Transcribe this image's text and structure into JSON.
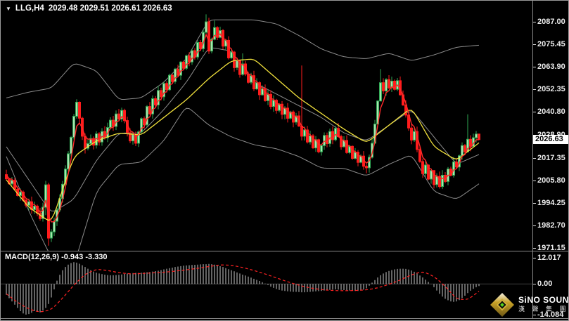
{
  "header": {
    "dropdown_icon": "▼",
    "symbol": "LLG,H4",
    "ohlc_text": "2029.48 2029.51 2026.61 2026.63"
  },
  "price_axis": {
    "ticks": [
      "2087.00",
      "2075.45",
      "2063.90",
      "2052.35",
      "2040.80",
      "2028.90",
      "2017.35",
      "2005.80",
      "1994.25",
      "1982.70",
      "1971.15"
    ],
    "tick_values": [
      2087.0,
      2075.45,
      2063.9,
      2052.35,
      2040.8,
      2028.9,
      2017.35,
      2005.8,
      1994.25,
      1982.7,
      1971.15
    ],
    "current_label": "2026.63",
    "current_value": 2026.63
  },
  "macd_axis": {
    "ticks": [
      "12.017",
      "0.00",
      "-14.084"
    ],
    "tick_values": [
      12.017,
      0,
      -14.084
    ]
  },
  "macd_panel": {
    "label": "MACD(12,26,9) -0.943 -3.330"
  },
  "watermark": {
    "brand": "SiNO SOUND",
    "brand_cn": "漢 聲 集 團"
  },
  "colors": {
    "background": "#000000",
    "up_fill": "#A9E4AF",
    "up_stroke": "#2FA854",
    "down": "#FF1C1C",
    "band": "#8C8C8C",
    "ma_yellow": "#F0E03C",
    "ma_red": "#FF2A2A",
    "macd_bar": "#C9C9C9",
    "macd_signal": "#FF2222",
    "axis_text": "#ECECEC",
    "zero_line": "#3c3c3c"
  },
  "chart_data": {
    "type": "candlestick",
    "title": "LLG,H4",
    "symbol": "LLG",
    "timeframe": "H4",
    "last_ohlc": {
      "open": 2029.48,
      "high": 2029.51,
      "low": 2026.61,
      "close": 2026.63
    },
    "y_range": {
      "top": 2087.0,
      "bottom": 1971.15
    },
    "grid": "off",
    "closes": [
      2006.5,
      2004.0,
      2005.8,
      2001.2,
      1998.0,
      1999.8,
      1995.6,
      1993.0,
      1994.8,
      1990.8,
      1992.6,
      1989.0,
      1986.2,
      1992.0,
      2003.5,
      1976.2,
      1979.4,
      1984.8,
      1990.6,
      1996.4,
      2003.8,
      2011.6,
      2019.4,
      2027.8,
      2038.6,
      2045.8,
      2037.6,
      2028.4,
      2022.2,
      2024.6,
      2027.2,
      2023.8,
      2029.6,
      2025.4,
      2030.8,
      2027.6,
      2032.8,
      2036.6,
      2033.4,
      2039.8,
      2037.2,
      2041.6,
      2036.4,
      2030.2,
      2026.0,
      2029.2,
      2024.8,
      2030.6,
      2037.4,
      2034.2,
      2043.6,
      2039.8,
      2047.6,
      2044.4,
      2051.8,
      2048.6,
      2055.4,
      2052.2,
      2059.6,
      2056.4,
      2062.8,
      2059.6,
      2066.4,
      2063.2,
      2069.6,
      2066.4,
      2072.2,
      2069.0,
      2076.4,
      2073.2,
      2081.6,
      2087.0,
      2072.0,
      2078.0,
      2084.0,
      2079.0,
      2082.5,
      2074.5,
      2077.5,
      2068.5,
      2071.5,
      2063.5,
      2067.0,
      2060.0,
      2065.4,
      2060.2,
      2056.0,
      2059.4,
      2052.6,
      2055.8,
      2049.6,
      2052.8,
      2046.6,
      2049.8,
      2043.6,
      2046.8,
      2041.6,
      2044.8,
      2039.6,
      2042.8,
      2037.6,
      2040.8,
      2035.6,
      2038.8,
      2033.6,
      2028.4,
      2031.6,
      2025.4,
      2028.6,
      2022.4,
      2026.6,
      2020.4,
      2023.6,
      2028.8,
      2024.6,
      2030.8,
      2026.6,
      2032.4,
      2028.2,
      2023.0,
      2026.2,
      2020.0,
      2023.2,
      2017.0,
      2020.2,
      2015.0,
      2018.2,
      2013.0,
      2012.2,
      2017.6,
      2024.8,
      2034.6,
      2046.4,
      2055.8,
      2051.6,
      2057.4,
      2053.2,
      2056.6,
      2052.4,
      2056.8,
      2049.6,
      2044.4,
      2039.2,
      2032.6,
      2026.4,
      2030.8,
      2021.6,
      2015.4,
      2009.2,
      2013.6,
      2006.4,
      2010.8,
      2003.6,
      2007.8,
      2002.6,
      2008.4,
      2005.2,
      2011.6,
      2008.4,
      2015.2,
      2012.6,
      2018.4,
      2023.6,
      2020.4,
      2026.8,
      2023.2,
      2027.6,
      2029.5,
      2026.63
    ],
    "wick_overrides": {
      "14": [
        2005.5,
        1988.0
      ],
      "15": [
        2004.5,
        1972.3
      ],
      "71": [
        2090.8,
        2080.5
      ],
      "72": [
        2089.0,
        2070.5
      ],
      "74": [
        2087.6,
        2077.5
      ],
      "84": [
        2070.8,
        2059.4
      ],
      "105": [
        2064.6,
        2026.2
      ],
      "128": [
        2014.0,
        2009.4
      ],
      "133": [
        2062.8,
        2046.2
      ],
      "152": [
        2011.0,
        2001.6
      ],
      "164": [
        2039.6,
        2020.2
      ],
      "168": [
        2029.51,
        2026.61
      ]
    },
    "indicators": {
      "anchor_step": 8,
      "bollinger_upper": [
        2048,
        2051,
        2053,
        2066,
        2062,
        2047,
        2048,
        2056,
        2068,
        2088,
        2088,
        2088,
        2086,
        2080,
        2073,
        2069,
        2068,
        2071,
        2067,
        2070,
        2074,
        2075
      ],
      "bollinger_mid": [
        2023,
        2006,
        1989,
        1996,
        2016,
        2030,
        2030,
        2042,
        2056,
        2074,
        2072,
        2056,
        2050,
        2044,
        2038,
        2030,
        2026,
        2034,
        2042,
        2028,
        2014,
        2019
      ],
      "bollinger_lower": [
        2018,
        1990,
        1966,
        1962,
        2000,
        2014,
        2015,
        2026,
        2044,
        2034,
        2028,
        2024,
        2022,
        2018,
        2012,
        2012,
        2008,
        2014,
        2019,
        2000,
        1996,
        2004
      ],
      "ma_yellow": [
        2006,
        1992,
        1984,
        2018,
        2026,
        2030,
        2029,
        2038,
        2047,
        2058,
        2067,
        2068,
        2058,
        2048,
        2040,
        2032,
        2025,
        2034,
        2043,
        2023,
        2016,
        2025
      ],
      "ma_red_period": 4
    },
    "macd": {
      "label": "MACD(12,26,9)",
      "last_macd": -0.943,
      "last_signal": -3.33,
      "axis": [
        12.017,
        0,
        -14.084
      ],
      "histogram": [
        -5.0,
        -6.5,
        -8.0,
        -9.5,
        -11.0,
        -12.5,
        -13.5,
        -14.08,
        -13.8,
        -13.2,
        -12.5,
        -12.8,
        -13.0,
        -12.2,
        -11.0,
        -9.2,
        -6.2,
        -2.5,
        1.5,
        4.2,
        6.3,
        7.8,
        8.9,
        9.6,
        10.0,
        9.8,
        9.3,
        8.6,
        7.8,
        7.0,
        6.3,
        5.7,
        5.2,
        4.8,
        4.5,
        4.3,
        4.1,
        4.0,
        4.0,
        4.1,
        4.2,
        4.4,
        4.6,
        4.8,
        4.9,
        5.0,
        5.1,
        5.1,
        5.2,
        5.3,
        5.4,
        5.5,
        5.7,
        5.9,
        6.1,
        6.4,
        6.7,
        7.0,
        7.3,
        7.5,
        7.8,
        8.0,
        8.2,
        8.4,
        8.5,
        8.6,
        8.7,
        8.8,
        8.9,
        9.0,
        9.1,
        9.1,
        9.2,
        9.1,
        8.9,
        8.6,
        8.2,
        7.8,
        7.3,
        6.8,
        6.3,
        5.8,
        5.3,
        4.8,
        4.3,
        3.9,
        3.4,
        2.9,
        2.4,
        1.9,
        1.4,
        0.8,
        0.2,
        -0.5,
        -1.2,
        -1.8,
        -2.3,
        -2.7,
        -3.0,
        -3.2,
        -3.4,
        -3.5,
        -3.6,
        -3.6,
        -3.7,
        -3.8,
        -3.8,
        -3.7,
        -3.6,
        -3.5,
        -3.4,
        -3.3,
        -3.2,
        -3.0,
        -2.8,
        -2.7,
        -2.6,
        -2.5,
        -2.6,
        -2.7,
        -2.8,
        -2.9,
        -3.0,
        -3.1,
        -3.2,
        -3.2,
        -3.0,
        -2.6,
        -2.0,
        -0.8,
        0.6,
        1.8,
        3.0,
        4.0,
        4.8,
        5.5,
        6.0,
        6.4,
        6.7,
        6.9,
        7.0,
        7.0,
        6.9,
        6.6,
        6.2,
        5.6,
        4.8,
        3.9,
        3.0,
        2.0,
        1.0,
        0.1,
        -1.5,
        -3.0,
        -4.5,
        -5.8,
        -6.8,
        -7.5,
        -8.0,
        -8.2,
        -8.0,
        -7.4,
        -6.5,
        -5.4,
        -4.2,
        -3.1,
        -2.2,
        -1.5,
        -0.943
      ],
      "signal_step": 4,
      "signal_anchors": [
        -4.5,
        -8.5,
        -11.5,
        -13.0,
        -11.8,
        -6.5,
        -0.5,
        4.5,
        6.8,
        6.2,
        5.2,
        4.6,
        4.8,
        5.1,
        5.4,
        5.9,
        6.5,
        7.2,
        8.0,
        8.8,
        8.6,
        7.6,
        6.2,
        4.6,
        2.8,
        1.0,
        -0.6,
        -1.8,
        -2.6,
        -3.0,
        -3.1,
        -3.0,
        -2.7,
        -1.8,
        -0.2,
        1.8,
        4.2,
        5.8,
        3.5,
        -1.0,
        -6.9,
        -7.3,
        -3.33
      ]
    }
  }
}
